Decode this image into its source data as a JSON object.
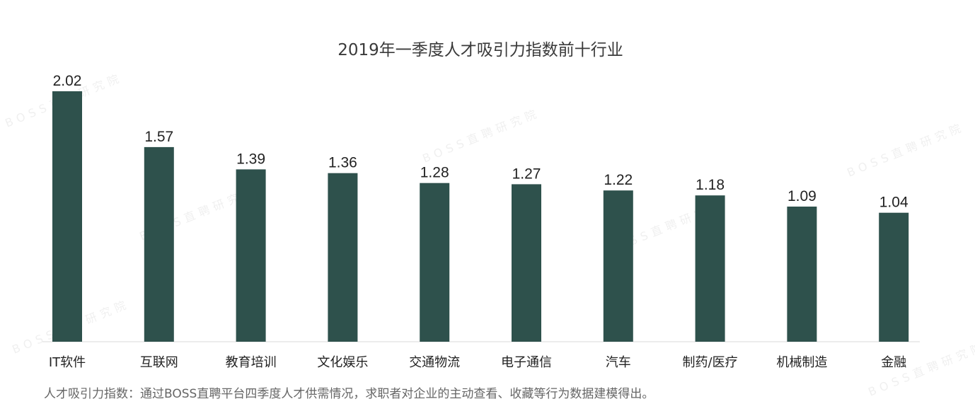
{
  "chart_data": {
    "type": "bar",
    "title": "2019年一季度人才吸引力指数前十行业",
    "categories": [
      "IT软件",
      "互联网",
      "教育培训",
      "文化娱乐",
      "交通物流",
      "电子通信",
      "汽车",
      "制药/医疗",
      "机械制造",
      "金融"
    ],
    "values": [
      2.02,
      1.57,
      1.39,
      1.36,
      1.28,
      1.27,
      1.22,
      1.18,
      1.09,
      1.04
    ],
    "value_labels": [
      "2.02",
      "1.57",
      "1.39",
      "1.36",
      "1.28",
      "1.27",
      "1.22",
      "1.18",
      "1.09",
      "1.04"
    ],
    "xlabel": "",
    "ylabel": "",
    "ylim": [
      0,
      2.02
    ],
    "grid": false,
    "bar_color": "#2e514c"
  },
  "note": "人才吸引力指数：通过BOSS直聘平台四季度人才供需情况，求职者对企业的主动查看、收藏等行为数据建模得出。",
  "watermark": "BOSS直聘研究院"
}
